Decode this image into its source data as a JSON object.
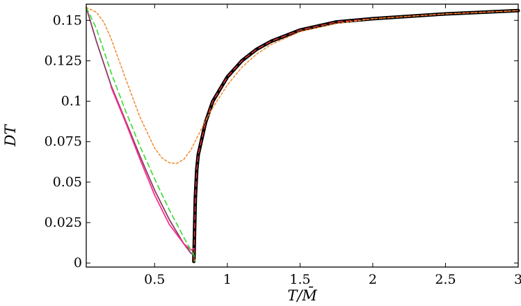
{
  "chart_data": {
    "type": "line",
    "title": "",
    "xlabel": "T/M̄",
    "ylabel": "DT",
    "xlim": [
      0.03,
      3.0
    ],
    "ylim": [
      -0.0025,
      0.16
    ],
    "x_ticks": [
      0.5,
      1,
      1.5,
      2,
      2.5,
      3
    ],
    "x_tick_labels": [
      "0.5",
      "1",
      "1.5",
      "2",
      "2.5",
      "3"
    ],
    "y_ticks": [
      0,
      0.025,
      0.05,
      0.075,
      0.1,
      0.125,
      0.15
    ],
    "y_tick_labels": [
      "0",
      "0.025",
      "0.05",
      "0.075",
      "0.1",
      "0.125",
      "0.15"
    ],
    "grid": false,
    "legend": "none",
    "series": [
      {
        "color": "#000000",
        "style": "solid-thick",
        "x": [
          0.77,
          0.78,
          0.79,
          0.8,
          0.85,
          0.9,
          1.0,
          1.1,
          1.2,
          1.3,
          1.5,
          1.75,
          2.0,
          2.5,
          3.0
        ],
        "y": [
          0.001,
          0.04,
          0.058,
          0.067,
          0.087,
          0.1,
          0.115,
          0.125,
          0.132,
          0.137,
          0.144,
          0.149,
          0.151,
          0.154,
          0.156
        ]
      },
      {
        "color": "#e3323c",
        "style": "dashed",
        "x": [
          0.77,
          0.78,
          0.79,
          0.8,
          0.85,
          0.9,
          1.0,
          1.1,
          1.2,
          1.3,
          1.5,
          1.75,
          2.0,
          2.5,
          3.0
        ],
        "y": [
          0.001,
          0.04,
          0.058,
          0.067,
          0.087,
          0.1,
          0.115,
          0.125,
          0.132,
          0.137,
          0.144,
          0.149,
          0.151,
          0.154,
          0.156
        ]
      },
      {
        "color": "#8c3a66",
        "style": "solid",
        "x": [
          0.03,
          0.1,
          0.2,
          0.3,
          0.4,
          0.5,
          0.6,
          0.7,
          0.75,
          0.77
        ],
        "y": [
          0.158,
          0.137,
          0.11,
          0.088,
          0.066,
          0.045,
          0.027,
          0.012,
          0.006,
          0.005
        ]
      },
      {
        "color": "#ff2d8a",
        "style": "solid",
        "x": [
          0.2,
          0.3,
          0.4,
          0.5,
          0.6,
          0.7,
          0.75,
          0.77
        ],
        "y": [
          0.109,
          0.087,
          0.064,
          0.042,
          0.024,
          0.012,
          0.008,
          0.009
        ]
      },
      {
        "color": "#33dd2b",
        "style": "dashed",
        "x": [
          0.03,
          0.1,
          0.2,
          0.3,
          0.4,
          0.5,
          0.6,
          0.7,
          0.75,
          0.77,
          0.78
        ],
        "y": [
          0.158,
          0.145,
          0.118,
          0.094,
          0.072,
          0.052,
          0.033,
          0.016,
          0.008,
          0.005,
          0.001
        ]
      },
      {
        "color": "#f0892a",
        "style": "dotted",
        "x": [
          0.03,
          0.1,
          0.15,
          0.2,
          0.3,
          0.4,
          0.5,
          0.55,
          0.6,
          0.65,
          0.7,
          0.75,
          0.8,
          0.85,
          0.9,
          1.0,
          1.1,
          1.2,
          1.3,
          1.5,
          1.75,
          2.0,
          2.5,
          3.0
        ],
        "y": [
          0.158,
          0.155,
          0.149,
          0.139,
          0.114,
          0.09,
          0.071,
          0.065,
          0.062,
          0.0615,
          0.064,
          0.07,
          0.079,
          0.088,
          0.096,
          0.11,
          0.121,
          0.129,
          0.135,
          0.143,
          0.148,
          0.151,
          0.154,
          0.156
        ]
      }
    ]
  }
}
